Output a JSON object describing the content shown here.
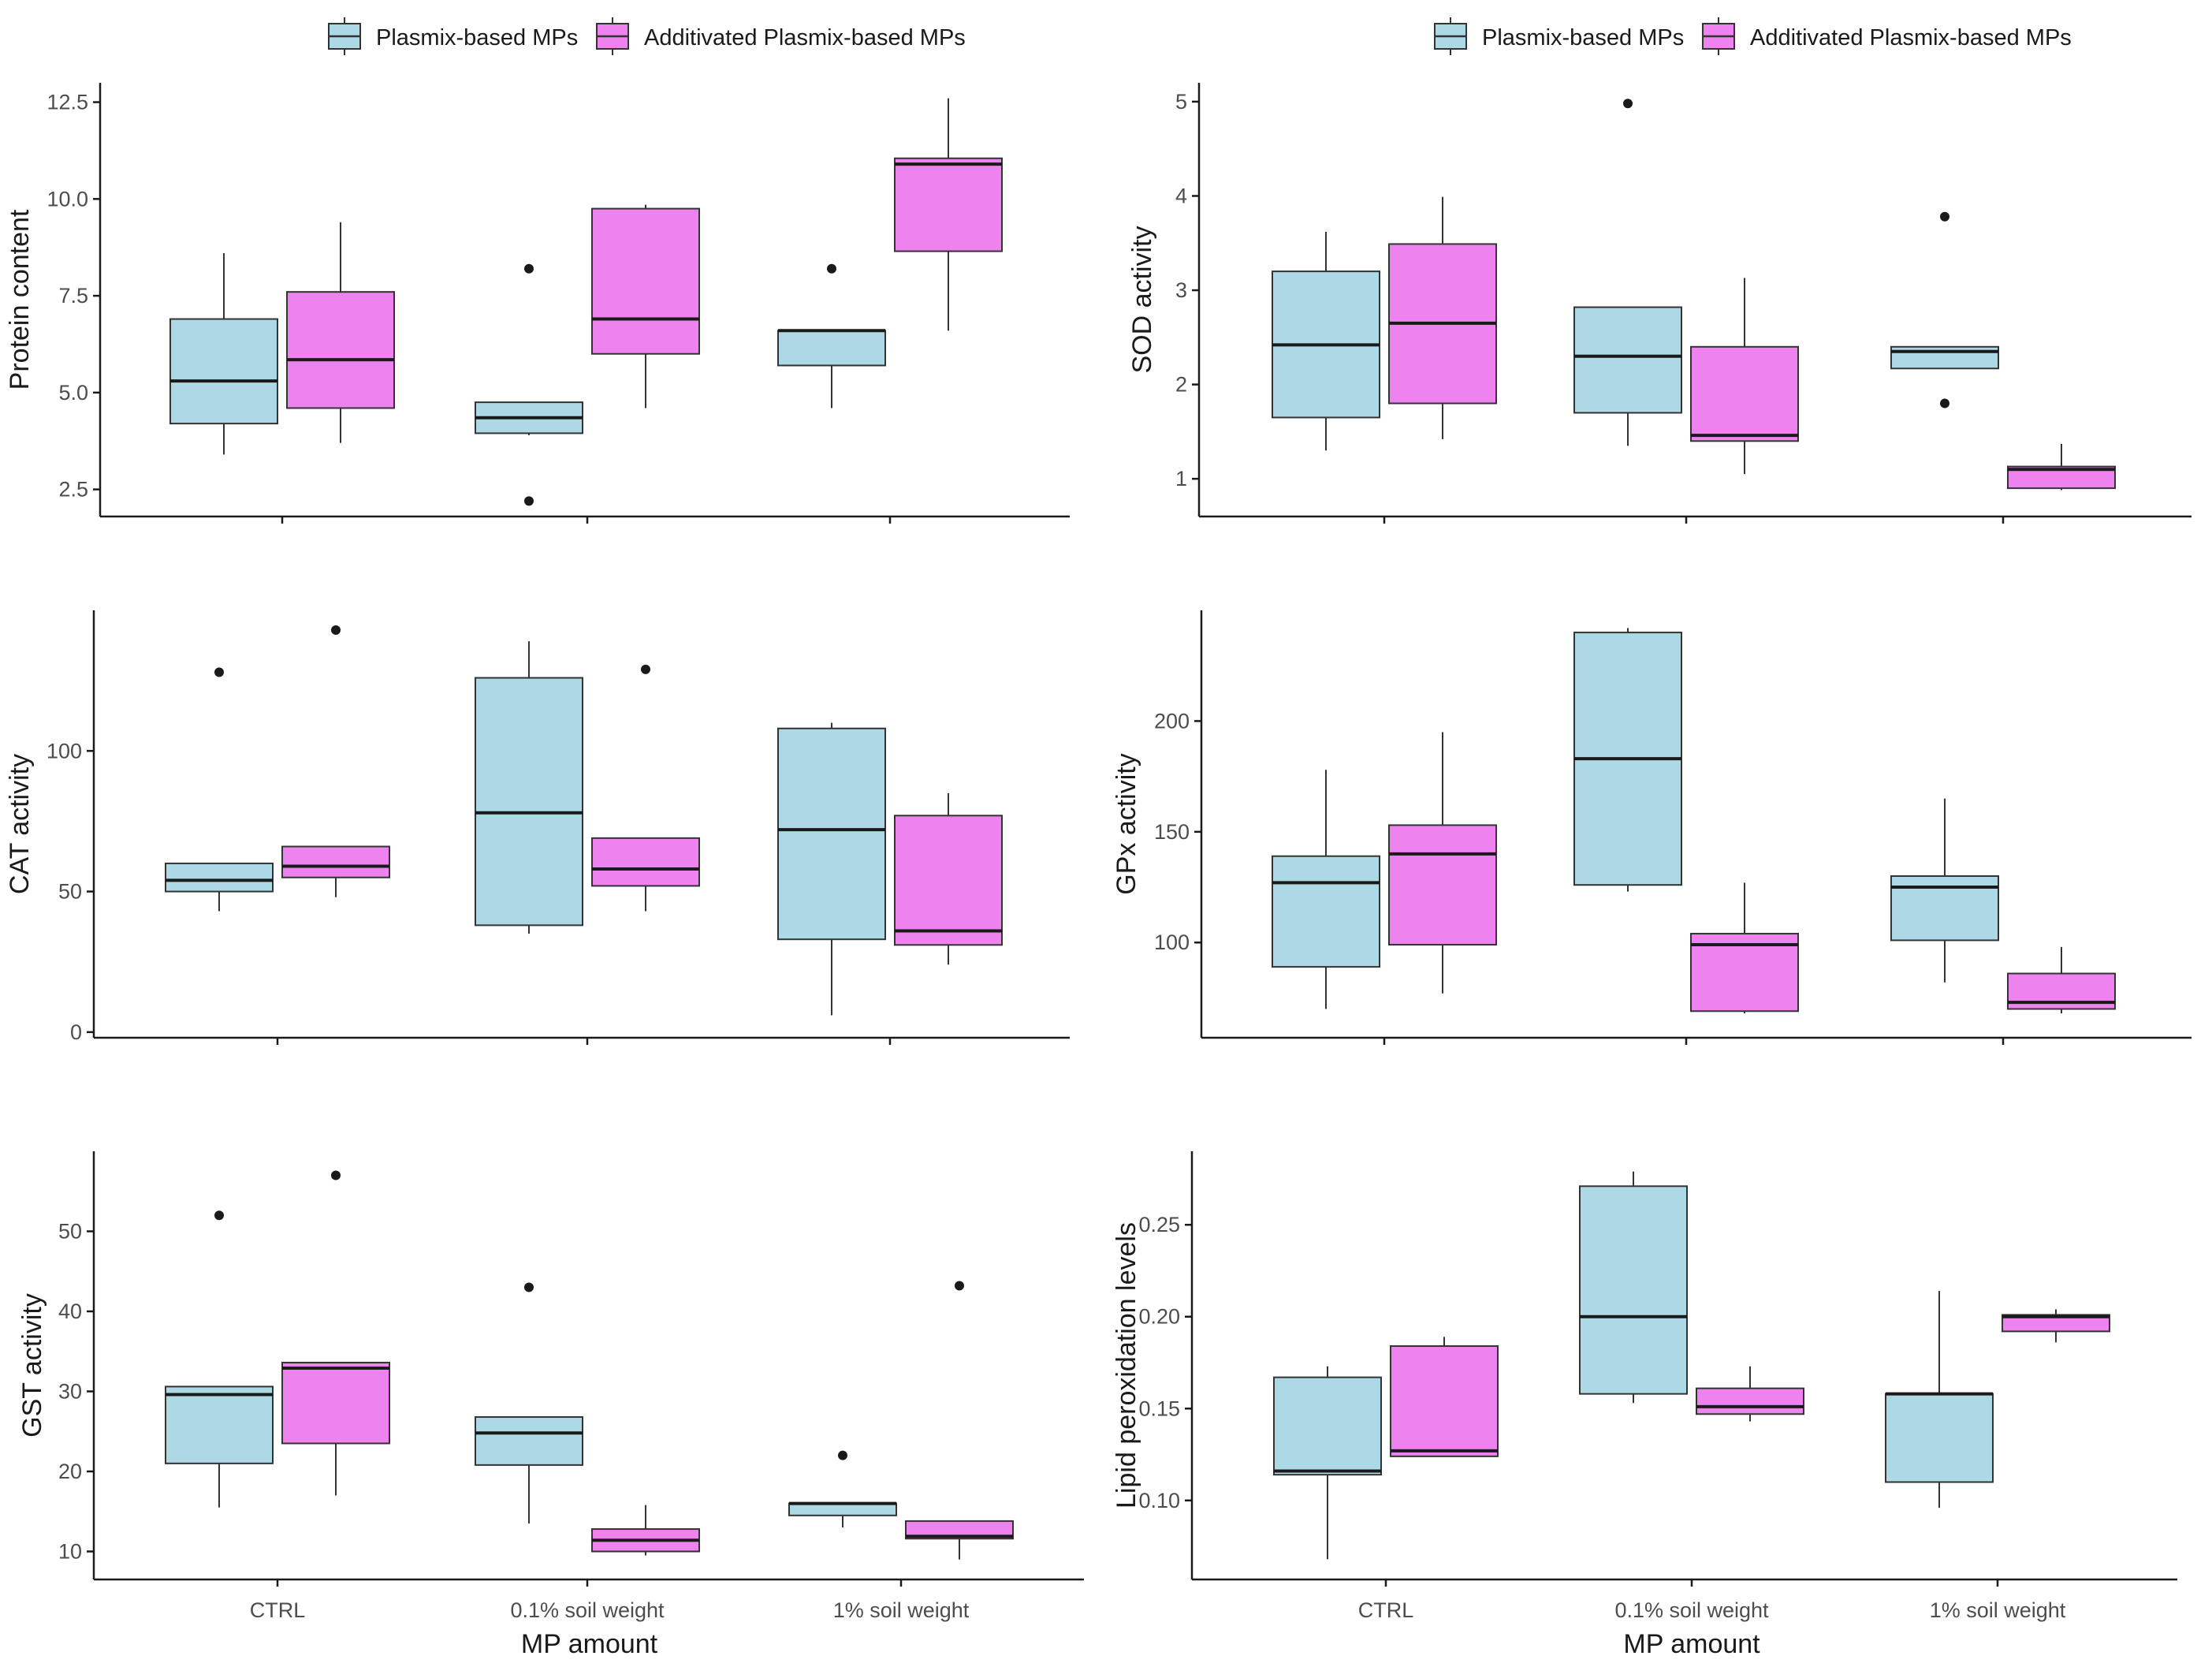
{
  "colors": {
    "plain": "#add8e6",
    "additivated": "#ee82ee",
    "stroke": "#333333",
    "axis": "#1a1a1a",
    "tick_text": "#4d4d4d"
  },
  "legend": {
    "items": [
      {
        "label": "Plasmix-based MPs",
        "color": "#add8e6"
      },
      {
        "label": "Additivated Plasmix-based MPs",
        "color": "#ee82ee"
      }
    ]
  },
  "chart_data": [
    {
      "type": "box",
      "ylabel": "Protein content",
      "xlabel": "",
      "ylim": [
        1.8,
        13.0
      ],
      "yticks": [
        2.5,
        5.0,
        7.5,
        10.0,
        12.5
      ],
      "ytick_labels": [
        "2.5",
        "5.0",
        "7.5",
        "10.0",
        "12.5"
      ],
      "categories": [
        "CTRL",
        "0.1% soil weight",
        "1% soil weight"
      ],
      "show_x_tick_labels": false,
      "series": [
        {
          "name": "Plasmix-based MPs",
          "color": "#add8e6",
          "boxes": [
            {
              "min": 3.4,
              "q1": 4.2,
              "median": 5.3,
              "q3": 6.9,
              "max": 8.6,
              "outliers": []
            },
            {
              "min": 3.9,
              "q1": 3.95,
              "median": 4.35,
              "q3": 4.75,
              "max": 4.75,
              "outliers": [
                8.2,
                2.2
              ]
            },
            {
              "min": 4.6,
              "q1": 5.7,
              "median": 6.6,
              "q3": 6.6,
              "max": 6.6,
              "outliers": [
                8.2
              ]
            }
          ]
        },
        {
          "name": "Additivated Plasmix-based MPs",
          "color": "#ee82ee",
          "boxes": [
            {
              "min": 3.7,
              "q1": 4.6,
              "median": 5.85,
              "q3": 7.6,
              "max": 9.4,
              "outliers": []
            },
            {
              "min": 4.6,
              "q1": 6.0,
              "median": 6.9,
              "q3": 9.75,
              "max": 9.85,
              "outliers": []
            },
            {
              "min": 6.6,
              "q1": 8.65,
              "median": 10.9,
              "q3": 11.05,
              "max": 12.6,
              "outliers": []
            }
          ]
        }
      ]
    },
    {
      "type": "box",
      "ylabel": "SOD activity",
      "xlabel": "",
      "ylim": [
        0.6,
        5.2
      ],
      "yticks": [
        1,
        2,
        3,
        4,
        5
      ],
      "ytick_labels": [
        "1",
        "2",
        "3",
        "4",
        "5"
      ],
      "categories": [
        "CTRL",
        "0.1% soil weight",
        "1% soil weight"
      ],
      "show_x_tick_labels": false,
      "series": [
        {
          "name": "Plasmix-based MPs",
          "color": "#add8e6",
          "boxes": [
            {
              "min": 1.3,
              "q1": 1.65,
              "median": 2.42,
              "q3": 3.2,
              "max": 3.62,
              "outliers": []
            },
            {
              "min": 1.35,
              "q1": 1.7,
              "median": 2.3,
              "q3": 2.82,
              "max": 2.82,
              "outliers": [
                4.98
              ]
            },
            {
              "min": 2.17,
              "q1": 2.17,
              "median": 2.35,
              "q3": 2.4,
              "max": 2.4,
              "outliers": [
                3.78,
                1.8
              ]
            }
          ]
        },
        {
          "name": "Additivated Plasmix-based MPs",
          "color": "#ee82ee",
          "boxes": [
            {
              "min": 1.42,
              "q1": 1.8,
              "median": 2.65,
              "q3": 3.49,
              "max": 3.99,
              "outliers": []
            },
            {
              "min": 1.05,
              "q1": 1.4,
              "median": 1.46,
              "q3": 2.4,
              "max": 3.13,
              "outliers": []
            },
            {
              "min": 0.88,
              "q1": 0.9,
              "median": 1.1,
              "q3": 1.13,
              "max": 1.37,
              "outliers": []
            }
          ]
        }
      ]
    },
    {
      "type": "box",
      "ylabel": "CAT activity",
      "xlabel": "",
      "ylim": [
        -2,
        150
      ],
      "yticks": [
        0,
        50,
        100
      ],
      "ytick_labels": [
        "0",
        "50",
        "100"
      ],
      "categories": [
        "CTRL",
        "0.1% soil weight",
        "1% soil weight"
      ],
      "show_x_tick_labels": false,
      "series": [
        {
          "name": "Plasmix-based MPs",
          "color": "#add8e6",
          "boxes": [
            {
              "min": 43,
              "q1": 50,
              "median": 54,
              "q3": 60,
              "max": 60,
              "outliers": [
                128
              ]
            },
            {
              "min": 35,
              "q1": 38,
              "median": 78,
              "q3": 126,
              "max": 139,
              "outliers": []
            },
            {
              "min": 6,
              "q1": 33,
              "median": 72,
              "q3": 108,
              "max": 110,
              "outliers": []
            }
          ]
        },
        {
          "name": "Additivated Plasmix-based MPs",
          "color": "#ee82ee",
          "boxes": [
            {
              "min": 48,
              "q1": 55,
              "median": 59,
              "q3": 66,
              "max": 66,
              "outliers": [
                143
              ]
            },
            {
              "min": 43,
              "q1": 52,
              "median": 58,
              "q3": 69,
              "max": 69,
              "outliers": [
                129
              ]
            },
            {
              "min": 24,
              "q1": 31,
              "median": 36,
              "q3": 77,
              "max": 85,
              "outliers": []
            }
          ]
        }
      ]
    },
    {
      "type": "box",
      "ylabel": "GPx activity",
      "xlabel": "",
      "ylim": [
        57,
        250
      ],
      "yticks": [
        100,
        150,
        200
      ],
      "ytick_labels": [
        "100",
        "150",
        "200"
      ],
      "categories": [
        "CTRL",
        "0.1% soil weight",
        "1% soil weight"
      ],
      "show_x_tick_labels": false,
      "series": [
        {
          "name": "Plasmix-based MPs",
          "color": "#add8e6",
          "boxes": [
            {
              "min": 70,
              "q1": 89,
              "median": 127,
              "q3": 139,
              "max": 178,
              "outliers": []
            },
            {
              "min": 123,
              "q1": 126,
              "median": 183,
              "q3": 240,
              "max": 242,
              "outliers": []
            },
            {
              "min": 82,
              "q1": 101,
              "median": 125,
              "q3": 130,
              "max": 165,
              "outliers": []
            }
          ]
        },
        {
          "name": "Additivated Plasmix-based MPs",
          "color": "#ee82ee",
          "boxes": [
            {
              "min": 77,
              "q1": 99,
              "median": 140,
              "q3": 153,
              "max": 195,
              "outliers": []
            },
            {
              "min": 68,
              "q1": 69,
              "median": 99,
              "q3": 104,
              "max": 127,
              "outliers": []
            },
            {
              "min": 68,
              "q1": 70,
              "median": 73,
              "q3": 86,
              "max": 98,
              "outliers": []
            }
          ]
        }
      ]
    },
    {
      "type": "box",
      "ylabel": "GST activity",
      "xlabel": "MP amount",
      "ylim": [
        6.5,
        60
      ],
      "yticks": [
        10,
        20,
        30,
        40,
        50
      ],
      "ytick_labels": [
        "10",
        "20",
        "30",
        "40",
        "50"
      ],
      "categories": [
        "CTRL",
        "0.1% soil weight",
        "1% soil weight"
      ],
      "show_x_tick_labels": true,
      "series": [
        {
          "name": "Plasmix-based MPs",
          "color": "#add8e6",
          "boxes": [
            {
              "min": 15.5,
              "q1": 21,
              "median": 29.6,
              "q3": 30.6,
              "max": 30.6,
              "outliers": [
                52
              ]
            },
            {
              "min": 13.5,
              "q1": 20.8,
              "median": 24.8,
              "q3": 26.8,
              "max": 26.8,
              "outliers": [
                43
              ]
            },
            {
              "min": 13,
              "q1": 14.5,
              "median": 16,
              "q3": 16,
              "max": 16,
              "outliers": [
                22
              ]
            }
          ]
        },
        {
          "name": "Additivated Plasmix-based MPs",
          "color": "#ee82ee",
          "boxes": [
            {
              "min": 17,
              "q1": 23.5,
              "median": 32.9,
              "q3": 33.6,
              "max": 33.6,
              "outliers": [
                57
              ]
            },
            {
              "min": 9.5,
              "q1": 10,
              "median": 11.4,
              "q3": 12.8,
              "max": 15.8,
              "outliers": []
            },
            {
              "min": 9,
              "q1": 11.6,
              "median": 11.9,
              "q3": 13.8,
              "max": 13.8,
              "outliers": [
                43.2
              ]
            }
          ]
        }
      ]
    },
    {
      "type": "box",
      "ylabel": "Lipid peroxidation levels",
      "xlabel": "MP amount",
      "ylim": [
        0.057,
        0.29
      ],
      "yticks": [
        0.1,
        0.15,
        0.2,
        0.25
      ],
      "ytick_labels": [
        "0.10",
        "0.15",
        "0.20",
        "0.25"
      ],
      "categories": [
        "CTRL",
        "0.1% soil weight",
        "1% soil weight"
      ],
      "show_x_tick_labels": true,
      "series": [
        {
          "name": "Plasmix-based MPs",
          "color": "#add8e6",
          "boxes": [
            {
              "min": 0.068,
              "q1": 0.114,
              "median": 0.116,
              "q3": 0.167,
              "max": 0.173,
              "outliers": []
            },
            {
              "min": 0.153,
              "q1": 0.158,
              "median": 0.2,
              "q3": 0.271,
              "max": 0.279,
              "outliers": []
            },
            {
              "min": 0.096,
              "q1": 0.11,
              "median": 0.158,
              "q3": 0.158,
              "max": 0.214,
              "outliers": []
            }
          ]
        },
        {
          "name": "Additivated Plasmix-based MPs",
          "color": "#ee82ee",
          "boxes": [
            {
              "min": 0.124,
              "q1": 0.124,
              "median": 0.127,
              "q3": 0.184,
              "max": 0.189,
              "outliers": []
            },
            {
              "min": 0.143,
              "q1": 0.147,
              "median": 0.151,
              "q3": 0.161,
              "max": 0.173,
              "outliers": []
            },
            {
              "min": 0.186,
              "q1": 0.192,
              "median": 0.2,
              "q3": 0.201,
              "max": 0.204,
              "outliers": []
            }
          ]
        }
      ]
    }
  ]
}
